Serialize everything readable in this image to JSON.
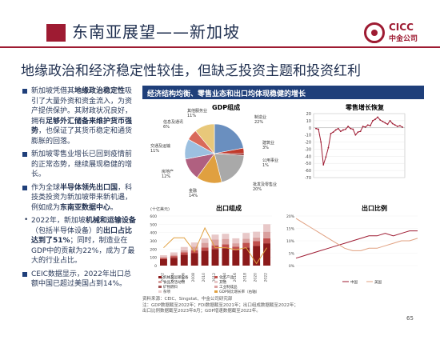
{
  "title": "东南亚展望——新加坡",
  "subtitle": "地缘政治和经济稳定性较佳，但缺乏投资主题和投资红利",
  "logo": {
    "line1": "CICC",
    "line2": "中金公司"
  },
  "bullets": [
    {
      "parts": [
        {
          "t": "新加坡凭借其"
        },
        {
          "t": "地缘政治稳定性",
          "b": 1
        },
        {
          "t": "吸引了大量外资和资金流入，为资产提供保护。其财政状况良好，拥有"
        },
        {
          "t": "足够外汇储备来维护货币强势",
          "b": 1
        },
        {
          "t": "，也保证了其货币稳定和通货膨胀的回落。"
        }
      ]
    },
    {
      "parts": [
        {
          "t": "新加坡零售业增长已回到疫情前的正常态势，继续展现稳健的增长。"
        }
      ]
    },
    {
      "parts": [
        {
          "t": "作为全球"
        },
        {
          "t": "半导体领先出口国",
          "b": 1
        },
        {
          "t": "，科技类投资为新加坡带来新机遇，例如成为"
        },
        {
          "t": "东南亚数据中心",
          "b": 1
        },
        {
          "t": "。"
        }
      ]
    },
    {
      "sub": 1,
      "parts": [
        {
          "t": "2022年，新加坡"
        },
        {
          "t": "机械和运输设备",
          "b": 1
        },
        {
          "t": "（包括半导体设备）的"
        },
        {
          "t": "出口占比达到了51%",
          "b": 1
        },
        {
          "t": "；同时，制造业在GDP中的贡献为22%，成为了最大的行业占比。"
        }
      ]
    },
    {
      "parts": [
        {
          "t": "CEIC数据显示，2022年出口总额中国已超过美国占到14%。"
        }
      ]
    }
  ],
  "panel_header": "经济结构均衡、零售业态和出口均体现稳健的增长",
  "gdp": {
    "title": "GDP组成",
    "labels": [
      "制造业 22%",
      "建筑业 3%",
      "公用事业 1%",
      "批发及零售业 20%",
      "金融 14%",
      "房地产 12%",
      "交通及运输 11%",
      "信息及通讯 6%",
      "其他服务业 11%"
    ],
    "chart_data": {
      "type": "pie",
      "categories": [
        "制造业",
        "建筑业",
        "公用事业",
        "批发及零售业",
        "金融",
        "房地产",
        "交通及运输",
        "信息及通讯",
        "其他服务业"
      ],
      "values": [
        22,
        3,
        1,
        20,
        14,
        12,
        11,
        6,
        11
      ],
      "colors": [
        "#6a8fbf",
        "#c0392b",
        "#8b1a1a",
        "#a9a9a9",
        "#e0a040",
        "#b06080",
        "#9cc0e0",
        "#d96a5a",
        "#e8c87a"
      ]
    }
  },
  "retail": {
    "title": "零售增长恢复",
    "yticks": [
      "20",
      "10",
      "0",
      "-10",
      "-20",
      "-30",
      "-40",
      "-50",
      "-60",
      "-70"
    ],
    "chart_data": {
      "type": "line",
      "ylim": [
        -70,
        20
      ],
      "values": [
        -1,
        -2,
        -20,
        -52,
        -41,
        -28,
        -8,
        -6,
        -3,
        -1,
        -5,
        -3,
        -2,
        2,
        -1,
        -2,
        -10,
        -6,
        -5,
        2,
        1,
        4,
        3,
        10,
        12,
        15,
        11,
        9,
        7,
        5,
        10,
        6,
        4,
        2,
        3,
        1
      ]
    }
  },
  "exports": {
    "title": "出口组成",
    "unit": "(十亿美元)",
    "legend": [
      "机械及运输设备",
      "化工产品",
      "食品及活动物",
      "其他",
      "矿物燃料",
      "工业制成品",
      "杂项",
      "GDP同比增长率（右轴）"
    ],
    "chart_data": {
      "type": "bar",
      "ylim": [
        0,
        600
      ],
      "categories": [
        "2002",
        "2004",
        "2006",
        "2008",
        "2010",
        "2012",
        "2014",
        "2016",
        "2018",
        "2020",
        "2022"
      ],
      "series": [
        {
          "name": "机械及运输设备",
          "values": [
            78,
            95,
            130,
            150,
            180,
            200,
            210,
            185,
            220,
            240,
            270
          ]
        },
        {
          "name": "化工产品",
          "values": [
            15,
            20,
            30,
            35,
            40,
            45,
            48,
            45,
            55,
            55,
            60
          ]
        },
        {
          "name": "矿物燃料",
          "values": [
            10,
            15,
            25,
            45,
            55,
            70,
            65,
            40,
            50,
            45,
            80
          ]
        },
        {
          "name": "其他",
          "values": [
            22,
            30,
            40,
            50,
            55,
            60,
            62,
            60,
            70,
            70,
            90
          ]
        }
      ],
      "growth": [
        4,
        9,
        9,
        2,
        14,
        4,
        4,
        3,
        4,
        -4,
        4
      ]
    }
  },
  "exratio": {
    "title": "出口比例",
    "legend": [
      "中国",
      "美国"
    ],
    "chart_data": {
      "type": "line",
      "ylim": [
        0,
        20
      ],
      "series": [
        {
          "name": "中国",
          "values": [
            3,
            4,
            5,
            6,
            7,
            8,
            9,
            10,
            11,
            12,
            12,
            13,
            12,
            13,
            14,
            14
          ]
        },
        {
          "name": "美国",
          "values": [
            19,
            17,
            15,
            13,
            11,
            9,
            7,
            6,
            6,
            7,
            7,
            8,
            9,
            10,
            10,
            11
          ]
        }
      ]
    }
  },
  "footer": [
    "资料来源：CEIC、Singstat、中金公司研究部",
    "注：GDP数据截至2022年；FDI数据截至2021年；出口组成数据截至2022年；",
    "出口比例数据截至2023年8月；GDP增速数据截至2022年。"
  ],
  "page": "65"
}
